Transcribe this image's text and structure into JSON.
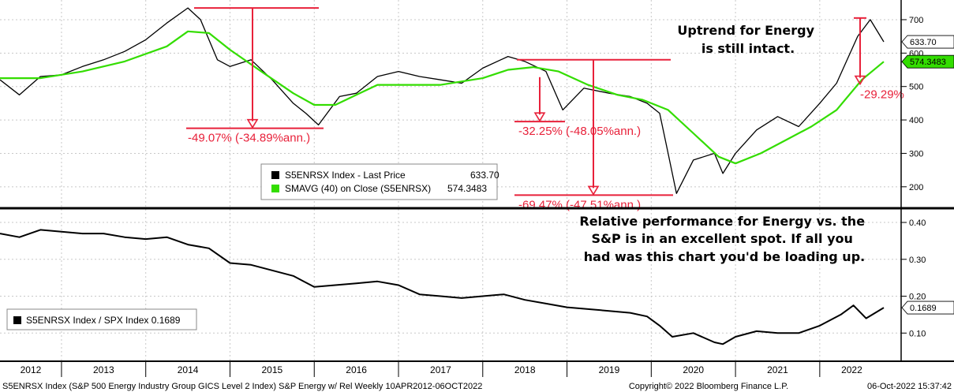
{
  "chart_data": [
    {
      "type": "line",
      "panel": "upper",
      "yticks": [
        200,
        300,
        400,
        500,
        600,
        700
      ],
      "ylim": [
        150,
        740
      ],
      "grid": true,
      "series": [
        {
          "name": "S5ENRSX Index - Last Price",
          "color": "#000000",
          "x": [
            2012.27,
            2012.5,
            2012.75,
            2013.0,
            2013.25,
            2013.5,
            2013.75,
            2014.0,
            2014.25,
            2014.5,
            2014.65,
            2014.85,
            2015.0,
            2015.25,
            2015.5,
            2015.75,
            2015.9,
            2016.05,
            2016.3,
            2016.5,
            2016.75,
            2017.0,
            2017.25,
            2017.5,
            2017.75,
            2018.0,
            2018.3,
            2018.5,
            2018.75,
            2018.95,
            2019.2,
            2019.5,
            2019.75,
            2019.95,
            2020.1,
            2020.2,
            2020.3,
            2020.5,
            2020.75,
            2020.85,
            2021.0,
            2021.25,
            2021.5,
            2021.75,
            2022.0,
            2022.2,
            2022.45,
            2022.6,
            2022.76
          ],
          "values": [
            520,
            475,
            530,
            535,
            560,
            580,
            605,
            640,
            690,
            735,
            700,
            580,
            560,
            580,
            520,
            450,
            420,
            385,
            470,
            480,
            530,
            545,
            530,
            520,
            510,
            555,
            590,
            575,
            545,
            430,
            495,
            480,
            470,
            450,
            420,
            300,
            180,
            280,
            300,
            240,
            300,
            370,
            410,
            380,
            450,
            510,
            650,
            700,
            633.7
          ]
        },
        {
          "name": "SMAVG (40)  on Close (S5ENRSX)",
          "color": "#33dd00",
          "x": [
            2012.27,
            2012.75,
            2013.25,
            2013.75,
            2014.25,
            2014.5,
            2014.75,
            2015.0,
            2015.4,
            2015.75,
            2016.0,
            2016.25,
            2016.5,
            2016.75,
            2017.0,
            2017.5,
            2018.0,
            2018.3,
            2018.6,
            2018.9,
            2019.25,
            2019.6,
            2019.9,
            2020.2,
            2020.5,
            2020.8,
            2021.0,
            2021.3,
            2021.6,
            2021.9,
            2022.2,
            2022.5,
            2022.76
          ],
          "values": [
            525,
            525,
            545,
            575,
            620,
            665,
            660,
            610,
            540,
            480,
            445,
            445,
            475,
            505,
            505,
            505,
            525,
            550,
            558,
            545,
            505,
            475,
            460,
            430,
            360,
            290,
            270,
            300,
            340,
            380,
            430,
            520,
            574.3483
          ]
        }
      ],
      "last_price_label": "633.70",
      "sma_label": "574.3483",
      "legend": {
        "placement": "bottom-center",
        "entries": [
          {
            "label": "S5ENRSX Index - Last Price",
            "value": "633.70",
            "color": "#000000"
          },
          {
            "label": "SMAVG (40)  on Close (S5ENRSX)",
            "value": "574.3483",
            "color": "#33dd00"
          }
        ]
      },
      "annotations": [
        {
          "text": "-49.07% (-34.89%ann.)",
          "from": [
            2014.1,
            735
          ],
          "to": [
            2015.9,
            375
          ]
        },
        {
          "text": "-32.25% (-48.05%ann.)",
          "from": [
            2018.25,
            580
          ],
          "to": [
            2018.2,
            395
          ]
        },
        {
          "text": "-69.47% (-47.51%ann.)",
          "from": [
            2018.0,
            580
          ],
          "to": [
            2020.3,
            175
          ]
        },
        {
          "text": "-29.29%",
          "from": [
            2022.5,
            705
          ],
          "to": [
            2022.5,
            505
          ]
        },
        {
          "text": "Uptrend for Energy\nis still intact.",
          "position": "top-right"
        }
      ]
    },
    {
      "type": "line",
      "panel": "lower",
      "yticks": [
        0.1,
        0.2,
        0.3,
        0.4
      ],
      "ylim": [
        0.045,
        0.43
      ],
      "grid": true,
      "series": [
        {
          "name": "S5ENRSX Index / SPX Index 0.1689",
          "color": "#000000",
          "x": [
            2012.27,
            2012.5,
            2012.75,
            2013.0,
            2013.25,
            2013.5,
            2013.75,
            2014.0,
            2014.25,
            2014.5,
            2014.75,
            2015.0,
            2015.25,
            2015.5,
            2015.75,
            2016.0,
            2016.25,
            2016.5,
            2016.75,
            2017.0,
            2017.25,
            2017.5,
            2017.75,
            2018.0,
            2018.25,
            2018.5,
            2018.75,
            2019.0,
            2019.25,
            2019.5,
            2019.75,
            2019.95,
            2020.1,
            2020.25,
            2020.5,
            2020.75,
            2020.85,
            2021.0,
            2021.25,
            2021.5,
            2021.75,
            2022.0,
            2022.25,
            2022.4,
            2022.55,
            2022.76
          ],
          "values": [
            0.37,
            0.36,
            0.38,
            0.375,
            0.37,
            0.37,
            0.36,
            0.355,
            0.36,
            0.34,
            0.33,
            0.29,
            0.285,
            0.27,
            0.255,
            0.225,
            0.23,
            0.235,
            0.24,
            0.23,
            0.205,
            0.2,
            0.195,
            0.2,
            0.205,
            0.19,
            0.18,
            0.17,
            0.165,
            0.16,
            0.155,
            0.145,
            0.12,
            0.09,
            0.1,
            0.075,
            0.07,
            0.09,
            0.105,
            0.1,
            0.1,
            0.12,
            0.15,
            0.175,
            0.14,
            0.1689
          ]
        }
      ],
      "last_value_label": "0.1689",
      "legend": {
        "placement": "bottom-left",
        "entries": [
          {
            "label": "S5ENRSX Index / SPX Index 0.1689",
            "color": "#000000"
          }
        ]
      },
      "annotations": [
        {
          "text": "Relative performance for Energy vs. the\nS&P is in an excellent spot. If all you\nhad was this chart you'd be loading up.",
          "position": "top-right"
        }
      ]
    }
  ],
  "xaxis": {
    "labels": [
      "2012",
      "2013",
      "2014",
      "2015",
      "2016",
      "2017",
      "2018",
      "2019",
      "2020",
      "2021",
      "2022"
    ],
    "range": [
      2012.27,
      2022.76
    ]
  },
  "footer": {
    "left": "S5ENRSX Index (S&P 500 Energy Industry Group GICS Level 2 Index) S&P Energy w/ Rel  Weekly 10APR2012-06OCT2022",
    "center": "Copyright© 2022 Bloomberg Finance L.P.",
    "right": "06-Oct-2022 15:37:42"
  },
  "colors": {
    "price": "#000000",
    "sma": "#33dd00",
    "annotation": "#e8213a",
    "grid": "#c8c8c8"
  }
}
